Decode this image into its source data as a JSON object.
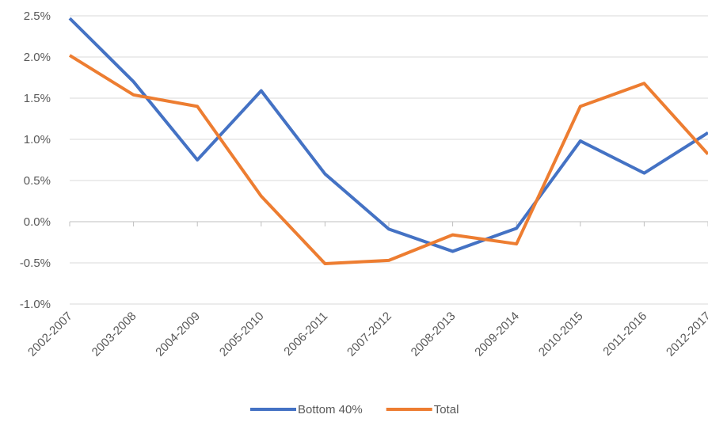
{
  "chart_data": {
    "type": "line",
    "categories": [
      "2002-2007",
      "2003-2008",
      "2004-2009",
      "2005-2010",
      "2006-2011",
      "2007-2012",
      "2008-2013",
      "2009-2014",
      "2010-2015",
      "2011-2016",
      "2012-2017"
    ],
    "series": [
      {
        "name": "Bottom 40%",
        "color": "#4472c4",
        "values": [
          2.47,
          1.7,
          0.75,
          1.59,
          0.58,
          -0.09,
          -0.36,
          -0.08,
          0.98,
          0.59,
          1.08
        ]
      },
      {
        "name": "Total",
        "color": "#ed7d31",
        "values": [
          2.02,
          1.54,
          1.4,
          0.31,
          -0.51,
          -0.47,
          -0.16,
          -0.27,
          1.4,
          1.68,
          0.82
        ]
      }
    ],
    "ylim": [
      -1.0,
      2.5
    ],
    "yticks": [
      {
        "value": -1.0,
        "label": "-1.0%"
      },
      {
        "value": -0.5,
        "label": "-0.5%"
      },
      {
        "value": 0,
        "label": "0.0%"
      },
      {
        "value": 0.5,
        "label": "0.5%"
      },
      {
        "value": 1.0,
        "label": "1.0%"
      },
      {
        "value": 1.5,
        "label": "1.5%"
      },
      {
        "value": 2.0,
        "label": "2.0%"
      },
      {
        "value": 2.5,
        "label": "2.5%"
      }
    ],
    "grid": true,
    "legend": "bottom"
  }
}
